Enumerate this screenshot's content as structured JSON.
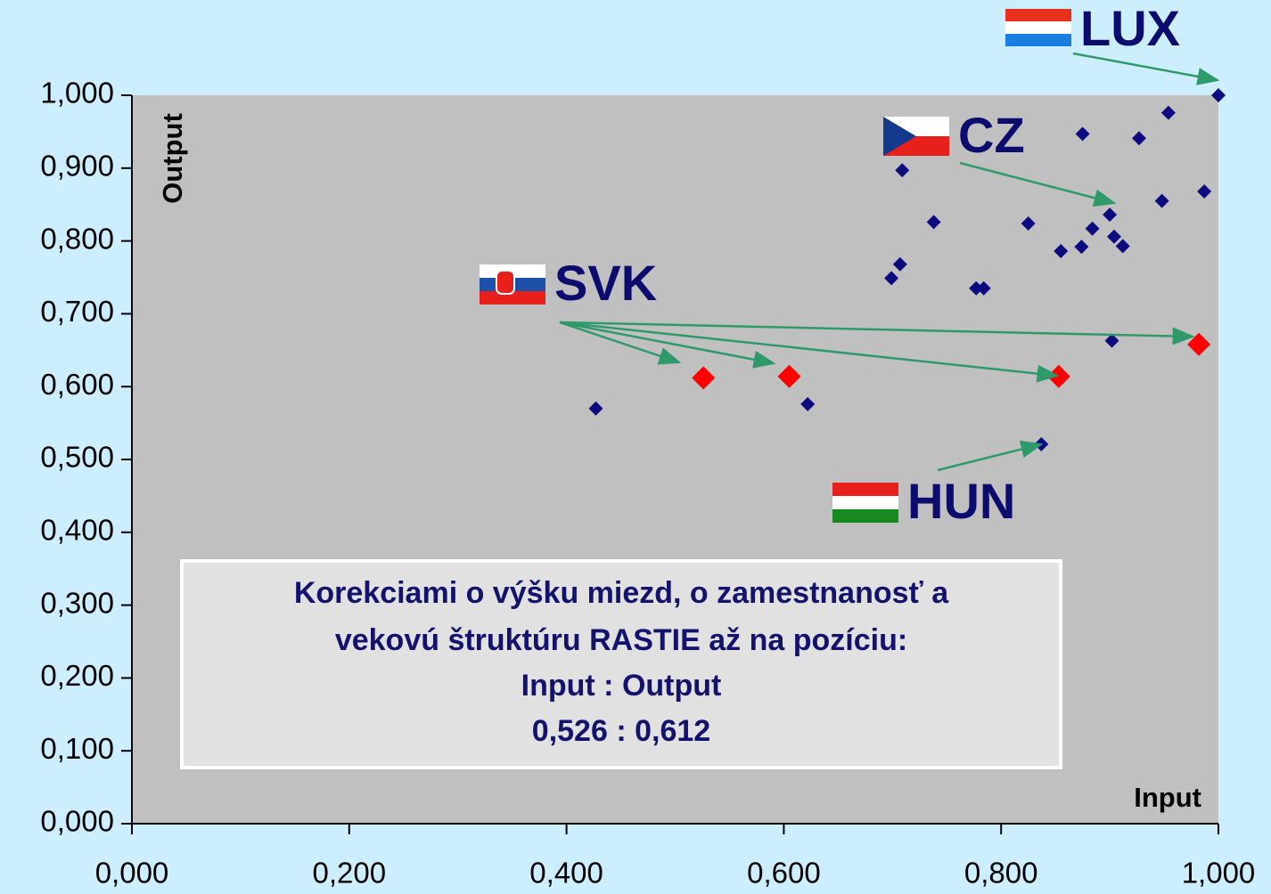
{
  "chart_data": {
    "type": "scatter",
    "xlabel": "Input",
    "ylabel": "Output",
    "xlim": [
      0,
      1
    ],
    "ylim": [
      0,
      1
    ],
    "xticks": [
      {
        "value": 0,
        "label": "0,000"
      },
      {
        "value": 0.2,
        "label": "0,200"
      },
      {
        "value": 0.4,
        "label": "0,400"
      },
      {
        "value": 0.6,
        "label": "0,600"
      },
      {
        "value": 0.8,
        "label": "0,800"
      },
      {
        "value": 1,
        "label": "1,000"
      }
    ],
    "yticks": [
      {
        "value": 0,
        "label": "0,000"
      },
      {
        "value": 0.1,
        "label": "0,100"
      },
      {
        "value": 0.2,
        "label": "0,200"
      },
      {
        "value": 0.3,
        "label": "0,300"
      },
      {
        "value": 0.4,
        "label": "0,400"
      },
      {
        "value": 0.5,
        "label": "0,500"
      },
      {
        "value": 0.6,
        "label": "0,600"
      },
      {
        "value": 0.7,
        "label": "0,700"
      },
      {
        "value": 0.8,
        "label": "0,800"
      },
      {
        "value": 0.9,
        "label": "0,900"
      },
      {
        "value": 1,
        "label": "1,000"
      }
    ],
    "series": [
      {
        "color": "#0c0c80",
        "x": [
          0.427,
          0.622,
          0.699,
          0.707,
          0.709,
          0.738,
          0.777,
          0.784,
          0.825,
          0.837,
          0.855,
          0.874,
          0.875,
          0.884,
          0.9,
          0.902,
          0.904,
          0.912,
          0.927,
          0.948,
          0.954,
          0.987,
          1.0
        ],
        "values": [
          0.57,
          0.576,
          0.749,
          0.768,
          0.897,
          0.826,
          0.735,
          0.735,
          0.824,
          0.521,
          0.786,
          0.792,
          0.947,
          0.817,
          0.836,
          0.663,
          0.806,
          0.793,
          0.941,
          0.855,
          0.976,
          0.868,
          1.0
        ]
      },
      {
        "color": "#ff0000",
        "x": [
          0.526,
          0.605,
          0.853,
          0.982
        ],
        "values": [
          0.612,
          0.614,
          0.614,
          0.658
        ]
      }
    ],
    "annotations": [
      "LUX",
      "CZ",
      "SVK",
      "HUN"
    ],
    "textbox": [
      "Korekciami o výšku miezd, o zamestnanosť a",
      "vekovú štruktúru RASTIE až na pozíciu:",
      "Input  : Output",
      "0,526 : 0,612"
    ]
  }
}
